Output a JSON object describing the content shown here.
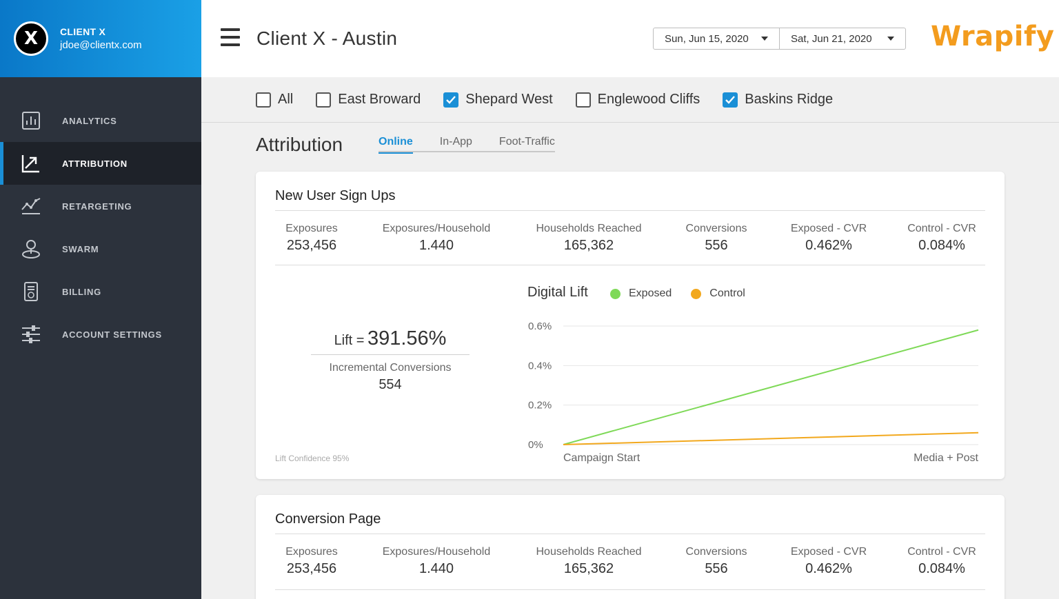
{
  "account": {
    "name": "CLIENT X",
    "email": "jdoe@clientx.com",
    "avatar_letter": "X"
  },
  "nav": [
    {
      "label": "ANALYTICS",
      "icon": "bar-chart-icon"
    },
    {
      "label": "ATTRIBUTION",
      "icon": "attribution-icon",
      "active": true
    },
    {
      "label": "RETARGETING",
      "icon": "line-graph-icon"
    },
    {
      "label": "SWARM",
      "icon": "location-pin-icon"
    },
    {
      "label": "BILLING",
      "icon": "invoice-icon"
    },
    {
      "label": "ACCOUNT SETTINGS",
      "icon": "sliders-icon"
    }
  ],
  "header": {
    "title": "Client X - Austin",
    "date_start": "Sun, Jun 15, 2020",
    "date_end": "Sat, Jun 21, 2020",
    "logo": "Wrapify"
  },
  "filters": [
    {
      "label": "All",
      "checked": false
    },
    {
      "label": "East Broward",
      "checked": false
    },
    {
      "label": "Shepard West",
      "checked": true
    },
    {
      "label": "Englewood Cliffs",
      "checked": false
    },
    {
      "label": "Baskins Ridge",
      "checked": true
    }
  ],
  "section": {
    "title": "Attribution",
    "tabs": [
      {
        "label": "Online",
        "active": true
      },
      {
        "label": "In-App",
        "active": false
      },
      {
        "label": "Foot-Traffic",
        "active": false
      }
    ]
  },
  "cards": [
    {
      "title": "New User Sign Ups",
      "stats": [
        {
          "label": "Exposures",
          "value": "253,456"
        },
        {
          "label": "Exposures/Household",
          "value": "1.440"
        },
        {
          "label": "Households Reached",
          "value": "165,362"
        },
        {
          "label": "Conversions",
          "value": "556"
        },
        {
          "label": "Exposed - CVR",
          "value": "0.462%"
        },
        {
          "label": "Control - CVR",
          "value": "0.084%"
        }
      ],
      "lift": {
        "label": "Lift =",
        "value": "391.56%",
        "incremental_label": "Incremental Conversions",
        "incremental_value": "554",
        "confidence": "Lift Confidence 95%"
      }
    },
    {
      "title": "Conversion Page",
      "stats": [
        {
          "label": "Exposures",
          "value": "253,456"
        },
        {
          "label": "Exposures/Household",
          "value": "1.440"
        },
        {
          "label": "Households Reached",
          "value": "165,362"
        },
        {
          "label": "Conversions",
          "value": "556"
        },
        {
          "label": "Exposed - CVR",
          "value": "0.462%"
        },
        {
          "label": "Control - CVR",
          "value": "0.084%"
        }
      ]
    }
  ],
  "colors": {
    "accent": "#1a8fd6",
    "exposed": "#7ed957",
    "control": "#f2a81d",
    "logo": "#f39c1e"
  },
  "chart_data": {
    "type": "line",
    "title": "Digital Lift",
    "x": [
      "Campaign Start",
      "Media + Post"
    ],
    "series": [
      {
        "name": "Exposed",
        "values": [
          0.0,
          0.58
        ]
      },
      {
        "name": "Control",
        "values": [
          0.0,
          0.06
        ]
      }
    ],
    "yticks": [
      "0%",
      "0.2%",
      "0.4%",
      "0.6%"
    ],
    "ylim": [
      0,
      0.6
    ],
    "grid": true,
    "legend": "top"
  }
}
